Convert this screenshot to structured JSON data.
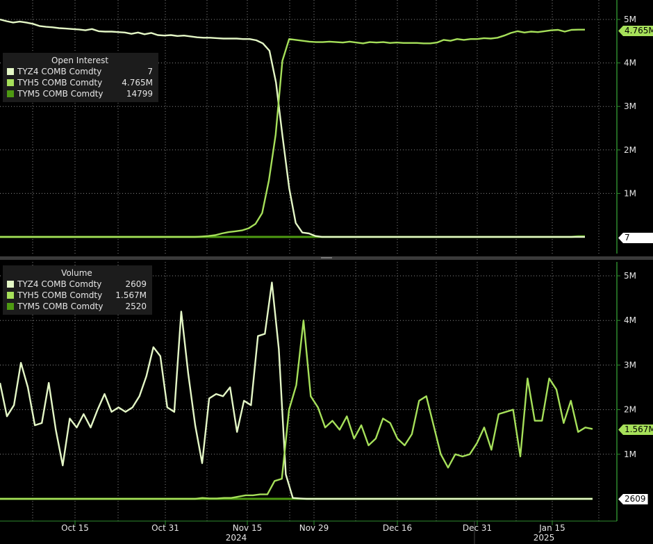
{
  "colors": {
    "background": "#000000",
    "grid": "#8a8a8a",
    "axis": "#2e8b2e",
    "tyz4": "#e4f7c6",
    "tyh5": "#a6e05a",
    "tym5": "#4e9a12"
  },
  "chart_data": [
    {
      "type": "line",
      "title": "Open Interest",
      "ylim": [
        0,
        5.2
      ],
      "y_unit": "M",
      "y_ticks": [
        "1M",
        "2M",
        "3M",
        "4M",
        "5M"
      ],
      "last_value_labels": [
        "4.765M",
        "7"
      ],
      "series": [
        {
          "name": "TYZ4 COMB Comdty",
          "value": "7",
          "color": "#e4f7c6",
          "values": [
            5.0,
            4.96,
            4.93,
            4.95,
            4.93,
            4.9,
            4.85,
            4.83,
            4.82,
            4.8,
            4.79,
            4.78,
            4.77,
            4.75,
            4.78,
            4.73,
            4.72,
            4.72,
            4.71,
            4.7,
            4.67,
            4.7,
            4.66,
            4.69,
            4.64,
            4.63,
            4.64,
            4.62,
            4.63,
            4.61,
            4.59,
            4.58,
            4.58,
            4.57,
            4.56,
            4.56,
            4.56,
            4.55,
            4.55,
            4.52,
            4.45,
            4.28,
            3.55,
            2.3,
            1.12,
            0.32,
            0.1,
            0.08,
            0.02,
            0.0,
            0,
            0,
            0,
            0,
            0,
            0,
            0,
            0,
            0,
            0,
            0,
            0,
            0,
            0,
            0,
            0,
            0,
            0,
            0,
            0,
            0,
            0,
            0,
            0,
            0,
            0,
            0,
            0,
            0,
            0,
            0,
            0,
            0,
            0,
            0,
            0,
            0,
            0,
            0,
            0
          ]
        },
        {
          "name": "TYH5 COMB Comdty",
          "value": "4.765M",
          "color": "#a6e05a",
          "values": [
            0,
            0,
            0,
            0,
            0,
            0,
            0,
            0,
            0,
            0,
            0,
            0,
            0,
            0,
            0,
            0,
            0,
            0,
            0,
            0,
            0,
            0,
            0,
            0,
            0,
            0,
            0,
            0,
            0,
            0,
            0.01,
            0.02,
            0.04,
            0.08,
            0.11,
            0.13,
            0.15,
            0.2,
            0.3,
            0.55,
            1.3,
            2.35,
            4.05,
            4.55,
            4.53,
            4.51,
            4.49,
            4.48,
            4.48,
            4.49,
            4.48,
            4.47,
            4.49,
            4.47,
            4.45,
            4.48,
            4.47,
            4.48,
            4.46,
            4.47,
            4.46,
            4.46,
            4.46,
            4.45,
            4.45,
            4.47,
            4.53,
            4.51,
            4.55,
            4.53,
            4.55,
            4.55,
            4.57,
            4.56,
            4.58,
            4.63,
            4.69,
            4.73,
            4.7,
            4.72,
            4.71,
            4.73,
            4.75,
            4.76,
            4.72,
            4.76,
            4.765,
            4.765
          ]
        },
        {
          "name": "TYM5 COMB Comdty",
          "value": "14799",
          "color": "#4e9a12",
          "values": [
            0,
            0,
            0,
            0,
            0,
            0,
            0,
            0,
            0,
            0,
            0,
            0,
            0,
            0,
            0,
            0,
            0,
            0,
            0,
            0,
            0,
            0,
            0,
            0,
            0,
            0,
            0,
            0,
            0,
            0,
            0,
            0,
            0,
            0,
            0,
            0,
            0,
            0,
            0,
            0,
            0,
            0,
            0,
            0,
            0,
            0,
            0,
            0,
            0,
            0,
            0,
            0,
            0,
            0,
            0,
            0,
            0,
            0,
            0,
            0,
            0,
            0,
            0,
            0,
            0,
            0,
            0,
            0,
            0,
            0,
            0,
            0,
            0,
            0,
            0,
            0,
            0,
            0,
            0,
            0,
            0,
            0,
            0,
            0,
            0,
            0,
            0.015,
            0.015
          ]
        }
      ]
    },
    {
      "type": "line",
      "title": "Volume",
      "ylim": [
        -0.2,
        5.3
      ],
      "y_unit": "M",
      "y_ticks": [
        "1M",
        "2M",
        "3M",
        "4M",
        "5M"
      ],
      "last_value_labels": [
        "1.567M",
        "2609"
      ],
      "series": [
        {
          "name": "TYZ4 COMB Comdty",
          "value": "2609",
          "color": "#e4f7c6",
          "values": [
            2.6,
            1.85,
            2.1,
            3.05,
            2.5,
            1.65,
            1.7,
            2.6,
            1.55,
            0.75,
            1.8,
            1.6,
            1.9,
            1.6,
            2.0,
            2.35,
            1.95,
            2.05,
            1.95,
            2.05,
            2.3,
            2.75,
            3.4,
            3.2,
            2.05,
            1.95,
            4.2,
            2.8,
            1.65,
            0.8,
            2.25,
            2.35,
            2.3,
            2.5,
            1.5,
            2.2,
            2.1,
            3.65,
            3.7,
            4.85,
            3.35,
            0.55,
            0.02,
            0.01,
            0.0,
            0.0,
            0,
            0,
            0,
            0,
            0,
            0,
            0,
            0,
            0,
            0,
            0,
            0,
            0,
            0,
            0,
            0,
            0,
            0,
            0,
            0,
            0,
            0,
            0,
            0,
            0,
            0,
            0,
            0,
            0,
            0,
            0,
            0,
            0,
            0,
            0,
            0,
            0,
            0,
            0,
            0
          ]
        },
        {
          "name": "TYH5 COMB Comdty",
          "value": "1.567M",
          "color": "#a6e05a",
          "values": [
            0,
            0,
            0,
            0,
            0,
            0,
            0,
            0,
            0,
            0,
            0,
            0,
            0,
            0,
            0,
            0,
            0,
            0,
            0,
            0,
            0,
            0,
            0,
            0,
            0,
            0,
            0,
            0,
            0.02,
            0.01,
            0.01,
            0.02,
            0.02,
            0.05,
            0.08,
            0.08,
            0.1,
            0.1,
            0.4,
            0.45,
            2.0,
            2.55,
            4.0,
            2.3,
            2.05,
            1.6,
            1.75,
            1.55,
            1.85,
            1.35,
            1.65,
            1.2,
            1.35,
            1.8,
            1.7,
            1.35,
            1.2,
            1.45,
            2.2,
            2.3,
            1.65,
            1.0,
            0.7,
            1.0,
            0.95,
            1.0,
            1.25,
            1.6,
            1.1,
            1.9,
            1.95,
            2.0,
            0.95,
            2.7,
            1.75,
            1.75,
            2.7,
            2.45,
            1.7,
            2.2,
            1.5,
            1.6,
            1.567
          ]
        },
        {
          "name": "TYM5 COMB Comdty",
          "value": "2520",
          "color": "#4e9a12",
          "values": [
            0,
            0,
            0,
            0,
            0,
            0,
            0,
            0,
            0,
            0,
            0,
            0,
            0,
            0,
            0,
            0,
            0,
            0,
            0,
            0,
            0,
            0,
            0,
            0,
            0,
            0,
            0,
            0,
            0,
            0,
            0,
            0,
            0,
            0,
            0,
            0,
            0,
            0,
            0,
            0,
            0,
            0,
            0,
            0,
            0,
            0,
            0,
            0,
            0,
            0,
            0,
            0,
            0,
            0,
            0,
            0,
            0,
            0,
            0,
            0,
            0,
            0,
            0,
            0,
            0,
            0,
            0,
            0,
            0,
            0,
            0,
            0,
            0,
            0,
            0,
            0,
            0,
            0,
            0,
            0,
            0,
            0,
            0,
            0,
            0,
            0,
            0
          ]
        }
      ]
    }
  ],
  "x_axis": {
    "tick_labels": [
      "Oct 15",
      "Oct 31",
      "Nov 15",
      "Nov 29",
      "Dec 16",
      "Dec 31",
      "Jan 15"
    ],
    "year_labels": [
      "2024",
      "2025"
    ]
  }
}
